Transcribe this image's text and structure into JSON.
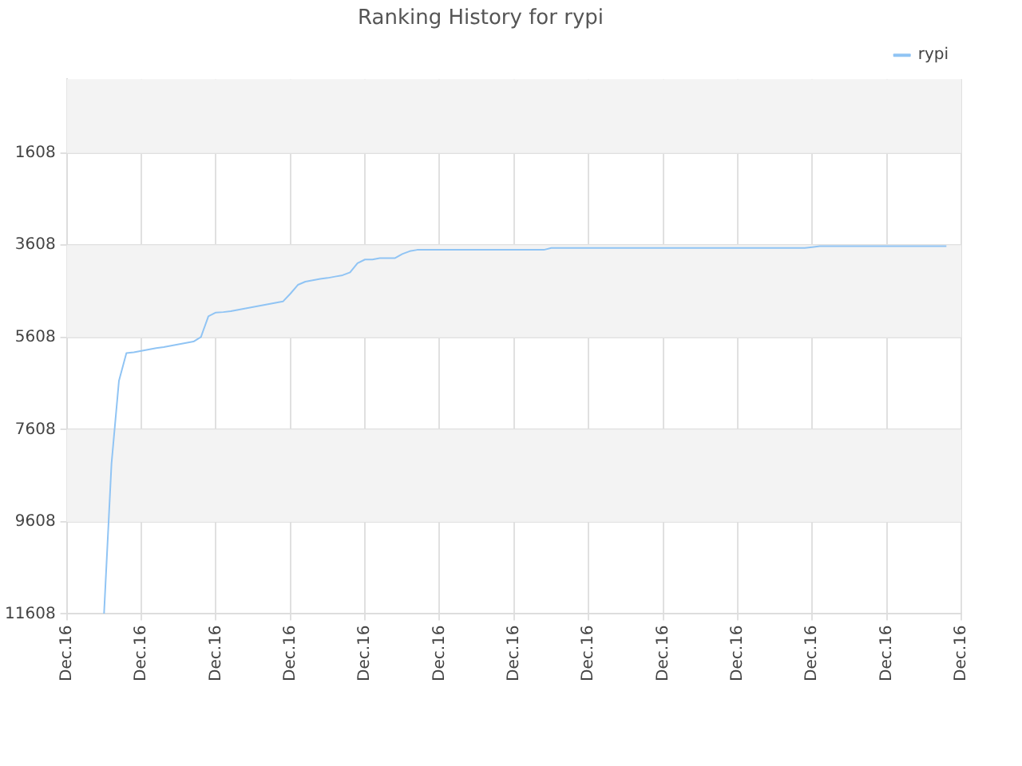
{
  "chart_data": {
    "type": "line",
    "title": "Ranking History for rypi",
    "legend": "top right",
    "grid": true,
    "marker": "none",
    "categories": [
      "Dec.16",
      null,
      null,
      null,
      null,
      null,
      null,
      null,
      null,
      null,
      "Dec.16",
      null,
      null,
      null,
      null,
      null,
      null,
      null,
      null,
      null,
      "Dec.16",
      null,
      null,
      null,
      null,
      null,
      null,
      null,
      null,
      null,
      "Dec.16",
      null,
      null,
      null,
      null,
      null,
      null,
      null,
      null,
      null,
      "Dec.16",
      null,
      null,
      null,
      null,
      null,
      null,
      null,
      null,
      null,
      "Dec.16",
      null,
      null,
      null,
      null,
      null,
      null,
      null,
      null,
      null,
      "Dec.16",
      null,
      null,
      null,
      null,
      null,
      null,
      null,
      null,
      null,
      "Dec.16",
      null,
      null,
      null,
      null,
      null,
      null,
      null,
      null,
      null,
      "Dec.16",
      null,
      null,
      null,
      null,
      null,
      null,
      null,
      null,
      null,
      "Dec.16",
      null,
      null,
      null,
      null,
      null,
      null,
      null,
      null,
      null,
      "Dec.16",
      null,
      null,
      null,
      null,
      null,
      null,
      null,
      null,
      null,
      "Dec.16",
      null,
      null,
      null,
      null,
      null,
      null,
      null,
      null,
      null,
      "Dec.16"
    ],
    "ylim": [
      11608,
      8
    ],
    "yticks": [
      1608,
      3608,
      5608,
      7608,
      9608,
      11608
    ],
    "series": [
      {
        "name": "rypi",
        "color": "#90c4f4",
        "values": [
          null,
          null,
          null,
          null,
          null,
          11600,
          8350,
          6550,
          5950,
          5930,
          5900,
          5870,
          5840,
          5820,
          5790,
          5760,
          5730,
          5700,
          5600,
          5150,
          5070,
          5060,
          5040,
          5010,
          4980,
          4950,
          4920,
          4890,
          4860,
          4830,
          4660,
          4470,
          4400,
          4370,
          4340,
          4320,
          4290,
          4260,
          4200,
          4000,
          3920,
          3920,
          3890,
          3890,
          3890,
          3800,
          3740,
          3710,
          3710,
          3710,
          3710,
          3710,
          3710,
          3710,
          3710,
          3710,
          3710,
          3710,
          3710,
          3710,
          3710,
          3710,
          3710,
          3710,
          3710,
          3670,
          3670,
          3670,
          3670,
          3670,
          3670,
          3670,
          3670,
          3670,
          3670,
          3670,
          3670,
          3670,
          3670,
          3670,
          3670,
          3670,
          3670,
          3670,
          3670,
          3670,
          3670,
          3670,
          3670,
          3670,
          3670,
          3670,
          3670,
          3670,
          3670,
          3670,
          3670,
          3670,
          3670,
          3670,
          3650,
          3630,
          3630,
          3630,
          3630,
          3630,
          3630,
          3630,
          3630,
          3630,
          3630,
          3630,
          3630,
          3630,
          3630,
          3630,
          3630,
          3630,
          3630,
          null,
          null
        ]
      }
    ]
  }
}
